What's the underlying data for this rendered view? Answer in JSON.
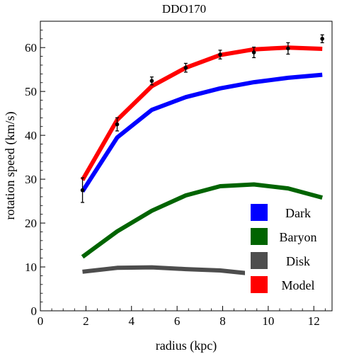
{
  "chart_data": {
    "type": "line",
    "title": "DDO170",
    "xlabel": "radius (kpc)",
    "ylabel": "rotation speed (km/s)",
    "xlim": [
      0,
      12.8
    ],
    "ylim": [
      0,
      66
    ],
    "xticks": [
      0,
      2,
      4,
      6,
      8,
      10,
      12
    ],
    "yticks": [
      0,
      10,
      20,
      30,
      40,
      50,
      60
    ],
    "grid": false,
    "legend_position": "bottom-right",
    "series": [
      {
        "name": "Dark",
        "color": "#0000ff",
        "x": [
          1.85,
          3.37,
          4.89,
          6.38,
          7.89,
          9.37,
          10.87,
          12.37
        ],
        "y": [
          27.2,
          39.5,
          45.8,
          48.7,
          50.7,
          52.1,
          53.1,
          53.8
        ]
      },
      {
        "name": "Baryon",
        "color": "#006400",
        "x": [
          1.85,
          3.37,
          4.89,
          6.38,
          7.89,
          9.37,
          10.87,
          12.37
        ],
        "y": [
          12.3,
          18.1,
          22.8,
          26.3,
          28.4,
          28.8,
          27.9,
          25.8
        ]
      },
      {
        "name": "Disk",
        "color": "#4d4d4d",
        "x": [
          1.85,
          3.37,
          4.89,
          6.38,
          7.89,
          9.37,
          10.87,
          12.37
        ],
        "y": [
          8.9,
          9.8,
          9.9,
          9.5,
          9.2,
          8.4,
          7.8,
          7.3
        ]
      },
      {
        "name": "Model",
        "color": "#ff0000",
        "x": [
          1.85,
          3.37,
          4.89,
          6.38,
          7.89,
          9.37,
          10.87,
          12.37
        ],
        "y": [
          29.8,
          43.5,
          51.2,
          55.4,
          58.3,
          59.6,
          60.0,
          59.7
        ]
      }
    ],
    "observed": {
      "x": [
        1.85,
        3.37,
        4.89,
        6.38,
        7.89,
        9.37,
        10.87,
        12.37
      ],
      "y": [
        27.5,
        42.5,
        52.4,
        55.4,
        58.4,
        58.9,
        59.8,
        62.0
      ],
      "err": [
        2.8,
        1.5,
        0.9,
        1.0,
        1.0,
        1.2,
        1.3,
        0.9
      ]
    }
  }
}
